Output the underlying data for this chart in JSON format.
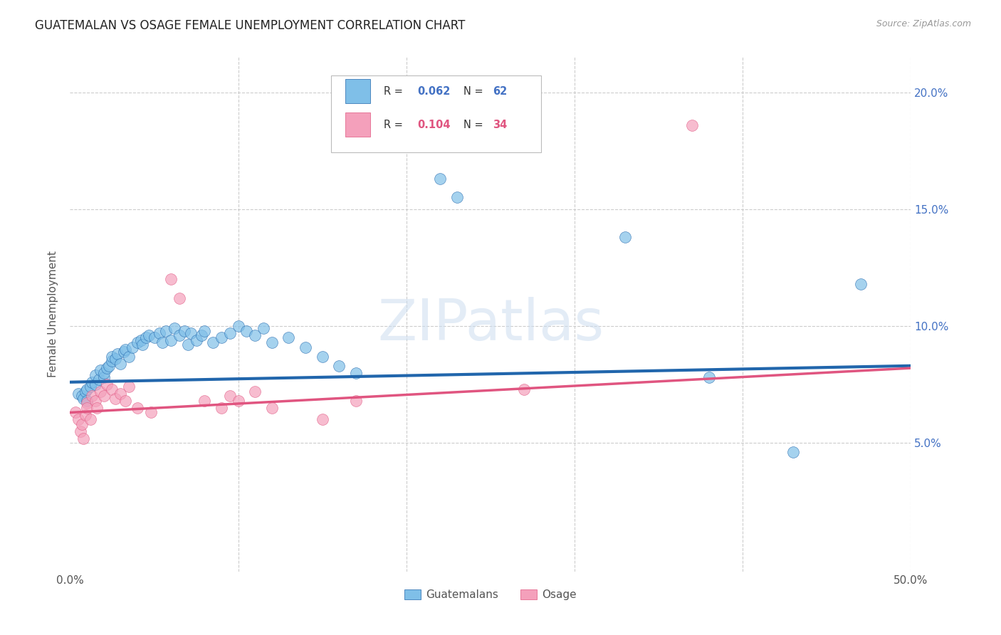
{
  "title": "GUATEMALAN VS OSAGE FEMALE UNEMPLOYMENT CORRELATION CHART",
  "source": "Source: ZipAtlas.com",
  "ylabel": "Female Unemployment",
  "guatemalan_color": "#7fbfe8",
  "osage_color": "#f4a0bb",
  "guatemalan_line_color": "#2166ac",
  "osage_line_color": "#e05580",
  "watermark_text": "ZIPatlas",
  "xlim": [
    0.0,
    0.5
  ],
  "ylim": [
    -0.005,
    0.215
  ],
  "guatemalans_x": [
    0.005,
    0.007,
    0.008,
    0.009,
    0.01,
    0.01,
    0.012,
    0.013,
    0.015,
    0.015,
    0.017,
    0.018,
    0.02,
    0.02,
    0.022,
    0.023,
    0.025,
    0.025,
    0.027,
    0.028,
    0.03,
    0.032,
    0.033,
    0.035,
    0.037,
    0.04,
    0.042,
    0.043,
    0.045,
    0.047,
    0.05,
    0.053,
    0.055,
    0.057,
    0.06,
    0.062,
    0.065,
    0.068,
    0.07,
    0.072,
    0.075,
    0.078,
    0.08,
    0.085,
    0.09,
    0.095,
    0.1,
    0.105,
    0.11,
    0.115,
    0.12,
    0.13,
    0.14,
    0.15,
    0.16,
    0.17,
    0.22,
    0.23,
    0.33,
    0.38,
    0.43,
    0.47
  ],
  "guatemalans_y": [
    0.071,
    0.07,
    0.069,
    0.072,
    0.073,
    0.068,
    0.074,
    0.076,
    0.075,
    0.079,
    0.077,
    0.081,
    0.078,
    0.08,
    0.082,
    0.083,
    0.085,
    0.087,
    0.086,
    0.088,
    0.084,
    0.089,
    0.09,
    0.087,
    0.091,
    0.093,
    0.094,
    0.092,
    0.095,
    0.096,
    0.095,
    0.097,
    0.093,
    0.098,
    0.094,
    0.099,
    0.096,
    0.098,
    0.092,
    0.097,
    0.094,
    0.096,
    0.098,
    0.093,
    0.095,
    0.097,
    0.1,
    0.098,
    0.096,
    0.099,
    0.093,
    0.095,
    0.091,
    0.087,
    0.083,
    0.08,
    0.163,
    0.155,
    0.138,
    0.078,
    0.046,
    0.118
  ],
  "osage_x": [
    0.003,
    0.005,
    0.006,
    0.007,
    0.008,
    0.009,
    0.01,
    0.01,
    0.012,
    0.013,
    0.015,
    0.016,
    0.018,
    0.02,
    0.022,
    0.025,
    0.027,
    0.03,
    0.033,
    0.035,
    0.04,
    0.048,
    0.06,
    0.065,
    0.08,
    0.09,
    0.095,
    0.1,
    0.11,
    0.12,
    0.15,
    0.17,
    0.27,
    0.37
  ],
  "osage_y": [
    0.063,
    0.06,
    0.055,
    0.058,
    0.052,
    0.062,
    0.067,
    0.065,
    0.06,
    0.07,
    0.068,
    0.065,
    0.072,
    0.07,
    0.075,
    0.073,
    0.069,
    0.071,
    0.068,
    0.074,
    0.065,
    0.063,
    0.12,
    0.112,
    0.068,
    0.065,
    0.07,
    0.068,
    0.072,
    0.065,
    0.06,
    0.068,
    0.073,
    0.186
  ],
  "g_trend_x0": 0.0,
  "g_trend_x1": 0.5,
  "g_trend_y0": 0.076,
  "g_trend_y1": 0.083,
  "o_trend_x0": 0.0,
  "o_trend_x1": 0.5,
  "o_trend_y0": 0.063,
  "o_trend_y1": 0.082
}
